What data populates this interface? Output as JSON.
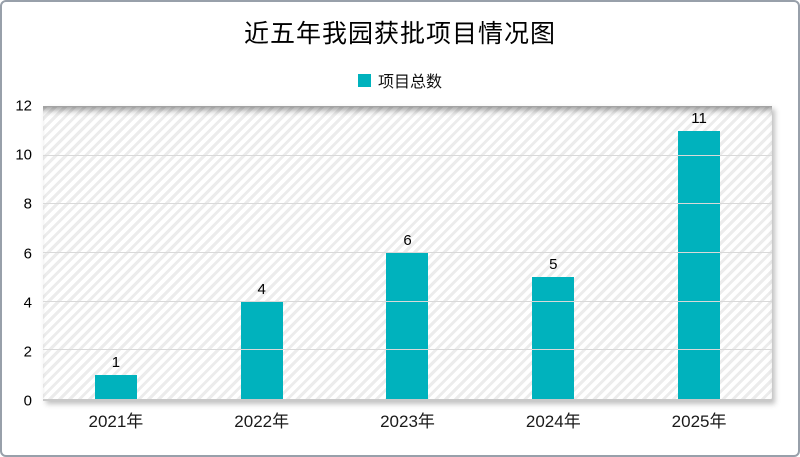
{
  "title": "近五年我园获批项目情况图",
  "legend": {
    "label": "项目总数",
    "swatch_color": "#00b2bd"
  },
  "chart_data": {
    "type": "bar",
    "title": "近五年我园获批项目情况图",
    "categories": [
      "2021年",
      "2022年",
      "2023年",
      "2024年",
      "2025年"
    ],
    "series": [
      {
        "name": "项目总数",
        "values": [
          1,
          4,
          6,
          5,
          11
        ]
      }
    ],
    "data_labels": [
      "1",
      "4",
      "6",
      "5",
      "11"
    ],
    "xlabel": "",
    "ylabel": "",
    "ylim": [
      0,
      12
    ],
    "yticks": [
      0,
      2,
      4,
      6,
      8,
      10,
      12
    ],
    "grid": "horizontal",
    "legend_position": "top",
    "bar_color": "#00b2bd",
    "plot_background": "diagonal-hatch"
  }
}
